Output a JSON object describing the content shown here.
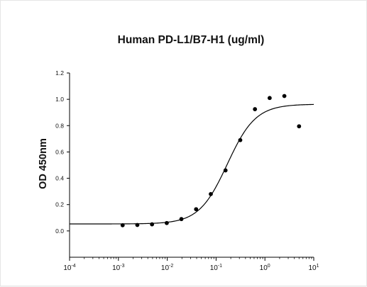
{
  "chart_data": {
    "type": "scatter",
    "title": "Human PD-L1/B7-H1 (ug/ml)",
    "xlabel": "",
    "ylabel": "OD 450nm",
    "x_scale": "log",
    "xlim": [
      0.0001,
      10
    ],
    "ylim": [
      -0.2,
      1.2
    ],
    "x_ticks": [
      {
        "base": "10",
        "exp": "-4"
      },
      {
        "base": "10",
        "exp": "-3"
      },
      {
        "base": "10",
        "exp": "-2"
      },
      {
        "base": "10",
        "exp": "-1"
      },
      {
        "base": "10",
        "exp": "0"
      },
      {
        "base": "10",
        "exp": "1"
      }
    ],
    "y_ticks": [
      "0.0",
      "0.2",
      "0.4",
      "0.6",
      "0.8",
      "1.0",
      "1.2"
    ],
    "grid": false,
    "series": [
      {
        "kind": "points",
        "x": [
          0.00122,
          0.00244,
          0.00488,
          0.00977,
          0.0195,
          0.039,
          0.078,
          0.156,
          0.3125,
          0.625,
          1.25,
          2.5,
          5.0
        ],
        "y": [
          0.043,
          0.045,
          0.05,
          0.06,
          0.09,
          0.165,
          0.28,
          0.46,
          0.69,
          0.925,
          1.01,
          1.025,
          0.795
        ]
      },
      {
        "kind": "fit-curve",
        "model": "4PL",
        "bottom": 0.053,
        "top": 0.963,
        "ec50": 0.17,
        "hill": 1.5
      }
    ],
    "colors": {
      "marker": "#000000",
      "line": "#000000",
      "axis": "#000000"
    }
  }
}
